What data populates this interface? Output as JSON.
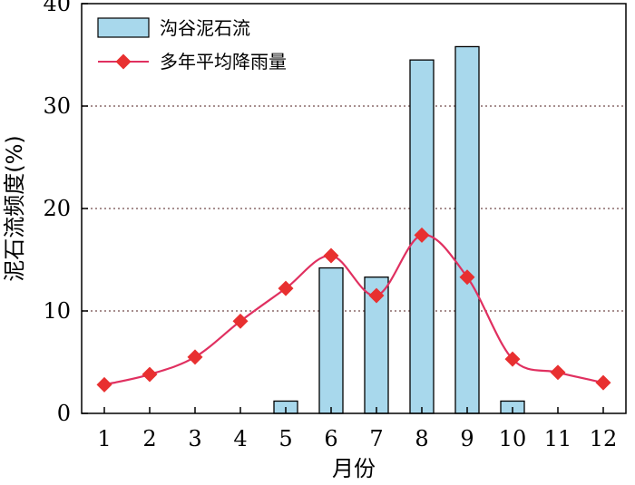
{
  "chart_data": {
    "type": "bar",
    "categories": [
      "1",
      "2",
      "3",
      "4",
      "5",
      "6",
      "7",
      "8",
      "9",
      "10",
      "11",
      "12"
    ],
    "series": [
      {
        "name": "沟谷泥石流",
        "type": "bar",
        "values": [
          0,
          0,
          0,
          0,
          1.2,
          14.2,
          13.3,
          34.5,
          35.8,
          1.2,
          0,
          0
        ],
        "color": "#a8d8ec"
      },
      {
        "name": "多年平均降雨量",
        "type": "line",
        "values": [
          2.8,
          3.8,
          5.5,
          9.0,
          12.2,
          15.4,
          11.5,
          17.4,
          13.3,
          5.3,
          4.0,
          3.0
        ],
        "color": "#e03060",
        "marker_color": "#e83030"
      }
    ],
    "xlabel": "月份",
    "ylabel": "泥石流频度(%)",
    "ylim": [
      0,
      40
    ],
    "yticks": [
      0,
      10,
      20,
      30,
      40
    ],
    "grid": "horizontal dotted",
    "legend": "top-left"
  }
}
